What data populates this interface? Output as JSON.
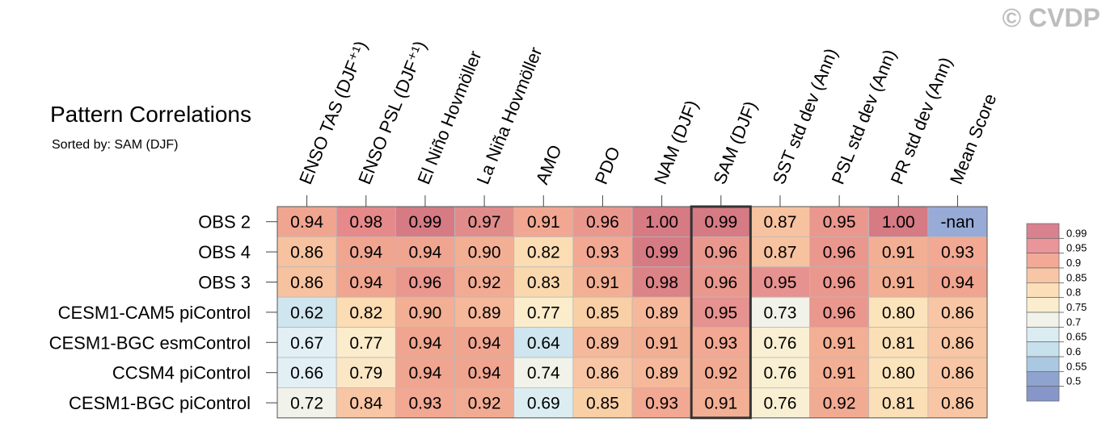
{
  "watermark": "© CVDP",
  "chart_data": {
    "type": "heatmap",
    "title": "Pattern Correlations",
    "subtitle": "Sorted by: SAM (DJF)",
    "columns": [
      "ENSO TAS (DJF⁺¹)",
      "ENSO PSL (DJF⁺¹)",
      "El Niño Hovmöller",
      "La Niña Hovmöller",
      "AMO",
      "PDO",
      "NAM (DJF)",
      "SAM (DJF)",
      "SST std dev (Ann)",
      "PSL std dev (Ann)",
      "PR std dev (Ann)",
      "Mean Score"
    ],
    "rows": [
      "OBS 2",
      "OBS 4",
      "OBS 3",
      "CESM1-CAM5 piControl",
      "CESM1-BGC esmControl",
      "CCSM4 piControl",
      "CESM1-BGC piControl"
    ],
    "values": [
      [
        "0.94",
        "0.98",
        "0.99",
        "0.97",
        "0.91",
        "0.96",
        "1.00",
        "0.99",
        "0.87",
        "0.95",
        "1.00",
        "-nan"
      ],
      [
        "0.86",
        "0.94",
        "0.94",
        "0.90",
        "0.82",
        "0.93",
        "0.99",
        "0.96",
        "0.87",
        "0.96",
        "0.91",
        "0.93"
      ],
      [
        "0.86",
        "0.94",
        "0.96",
        "0.92",
        "0.83",
        "0.91",
        "0.98",
        "0.96",
        "0.95",
        "0.96",
        "0.91",
        "0.94"
      ],
      [
        "0.62",
        "0.82",
        "0.90",
        "0.89",
        "0.77",
        "0.85",
        "0.89",
        "0.95",
        "0.73",
        "0.96",
        "0.80",
        "0.86"
      ],
      [
        "0.67",
        "0.77",
        "0.94",
        "0.94",
        "0.64",
        "0.89",
        "0.91",
        "0.93",
        "0.76",
        "0.91",
        "0.81",
        "0.86"
      ],
      [
        "0.66",
        "0.79",
        "0.94",
        "0.94",
        "0.74",
        "0.86",
        "0.89",
        "0.92",
        "0.76",
        "0.91",
        "0.80",
        "0.86"
      ],
      [
        "0.72",
        "0.84",
        "0.93",
        "0.92",
        "0.69",
        "0.85",
        "0.93",
        "0.91",
        "0.76",
        "0.92",
        "0.81",
        "0.86"
      ]
    ],
    "highlighted_column": "SAM (DJF)",
    "colorbar": {
      "labels": [
        "0.99",
        "0.95",
        "0.9",
        "0.85",
        "0.8",
        "0.75",
        "0.7",
        "0.65",
        "0.6",
        "0.55",
        "0.5"
      ],
      "colors": [
        "#d9828f",
        "#e9959a",
        "#f2aa96",
        "#f8c6a4",
        "#fbdfb9",
        "#fbeecf",
        "#f1f2e9",
        "#dcedf2",
        "#c6e0ec",
        "#aac8e0",
        "#8fa3cf",
        "#8796c8"
      ]
    },
    "nan_color": "#97abd6",
    "cell_colors": [
      [
        "#f0a590",
        "#e6898a",
        "#d67a84",
        "#e08c8b",
        "#f1a792",
        "#ea978e",
        "#d67a84",
        "#d67a84",
        "#f7c29f",
        "#ea978e",
        "#d67a84",
        "#97abd6"
      ],
      [
        "#f7c29f",
        "#f0a590",
        "#f0a590",
        "#f3af94",
        "#fbdcb3",
        "#f2a892",
        "#d67a84",
        "#ea978e",
        "#f7c29f",
        "#ea978e",
        "#f3af94",
        "#f2a892"
      ],
      [
        "#f7c29f",
        "#f0a590",
        "#ea978e",
        "#f2ab93",
        "#fad8ae",
        "#f3af94",
        "#dc8387",
        "#ea978e",
        "#e69290",
        "#ea978e",
        "#f3af94",
        "#f0a590"
      ],
      [
        "#cfe5ef",
        "#fbdcb3",
        "#f3af94",
        "#f5b89a",
        "#fbeccb",
        "#f9cfa6",
        "#f5b89a",
        "#e69290",
        "#f1f2e9",
        "#ea978e",
        "#fbe3bb",
        "#f8c6a4"
      ],
      [
        "#e2eff4",
        "#fbeccb",
        "#f0a590",
        "#f0a590",
        "#cfe5ef",
        "#f5b89a",
        "#f3af94",
        "#f2a892",
        "#f9efd3",
        "#f3af94",
        "#fbdfb6",
        "#f8c6a4"
      ],
      [
        "#e2eff4",
        "#fbe7c5",
        "#f0a590",
        "#f0a590",
        "#f1f2e9",
        "#f8c6a4",
        "#f5b89a",
        "#f2ab93",
        "#f9efd3",
        "#f3af94",
        "#fbe3bb",
        "#f8c6a4"
      ],
      [
        "#f1f2e9",
        "#f8c6a4",
        "#f2a892",
        "#f2ab93",
        "#dcedf2",
        "#f9cfa6",
        "#f2a892",
        "#f3af94",
        "#f9efd3",
        "#f2ab93",
        "#fbdfb6",
        "#f8c6a4"
      ]
    ]
  }
}
